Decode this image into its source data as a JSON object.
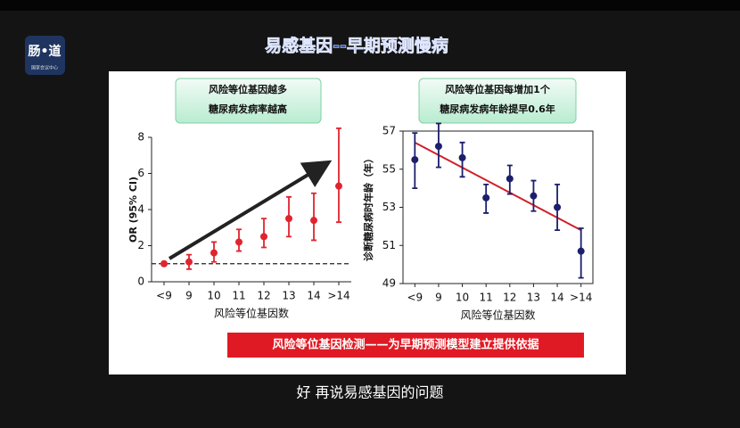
{
  "logo": {
    "name": "肠•道",
    "caption": "国家会议中心"
  },
  "slide_title": "易感基因--早期预测慢病",
  "chart_data": [
    {
      "type": "errorbar",
      "callout": [
        "风险等位基因越多",
        "糖尿病发病率越高"
      ],
      "ylabel": "OR (95% CI)",
      "xlabel": "风险等位基因数",
      "categories": [
        "<9",
        "9",
        "10",
        "11",
        "12",
        "13",
        "14",
        ">14"
      ],
      "values": [
        1.0,
        1.1,
        1.6,
        2.2,
        2.5,
        3.5,
        3.4,
        5.3
      ],
      "lower": [
        null,
        0.7,
        1.1,
        1.7,
        1.9,
        2.5,
        2.3,
        3.3
      ],
      "upper": [
        null,
        1.5,
        2.2,
        2.9,
        3.5,
        4.7,
        4.9,
        8.5
      ],
      "color": "#e0242f",
      "reference_line": 1,
      "ylim": [
        0,
        8
      ],
      "yticks": [
        0,
        2,
        4,
        6,
        8
      ]
    },
    {
      "type": "errorbar",
      "callout": [
        "风险等位基因每增加1个",
        "糖尿病发病年龄提早0.6年"
      ],
      "ylabel": "诊断糖尿病时年龄（年）",
      "xlabel": "风险等位基因数",
      "categories": [
        "<9",
        "9",
        "10",
        "11",
        "12",
        "13",
        "14",
        ">14"
      ],
      "values": [
        55.5,
        56.2,
        55.6,
        53.5,
        54.5,
        53.6,
        53.0,
        50.7
      ],
      "lower": [
        54.0,
        55.1,
        54.6,
        52.7,
        53.7,
        52.8,
        51.8,
        49.3
      ],
      "upper": [
        56.9,
        57.4,
        56.4,
        54.2,
        55.2,
        54.4,
        54.2,
        51.9
      ],
      "color": "#1c1f6b",
      "trend": [
        56.4,
        51.8
      ],
      "trend_color": "#d0202a",
      "ylim": [
        49,
        57
      ],
      "yticks": [
        49,
        51,
        53,
        55,
        57
      ]
    }
  ],
  "banner": "风险等位基因检测——为早期预测模型建立提供依据",
  "subtitle": "好  再说易感基因的问题"
}
